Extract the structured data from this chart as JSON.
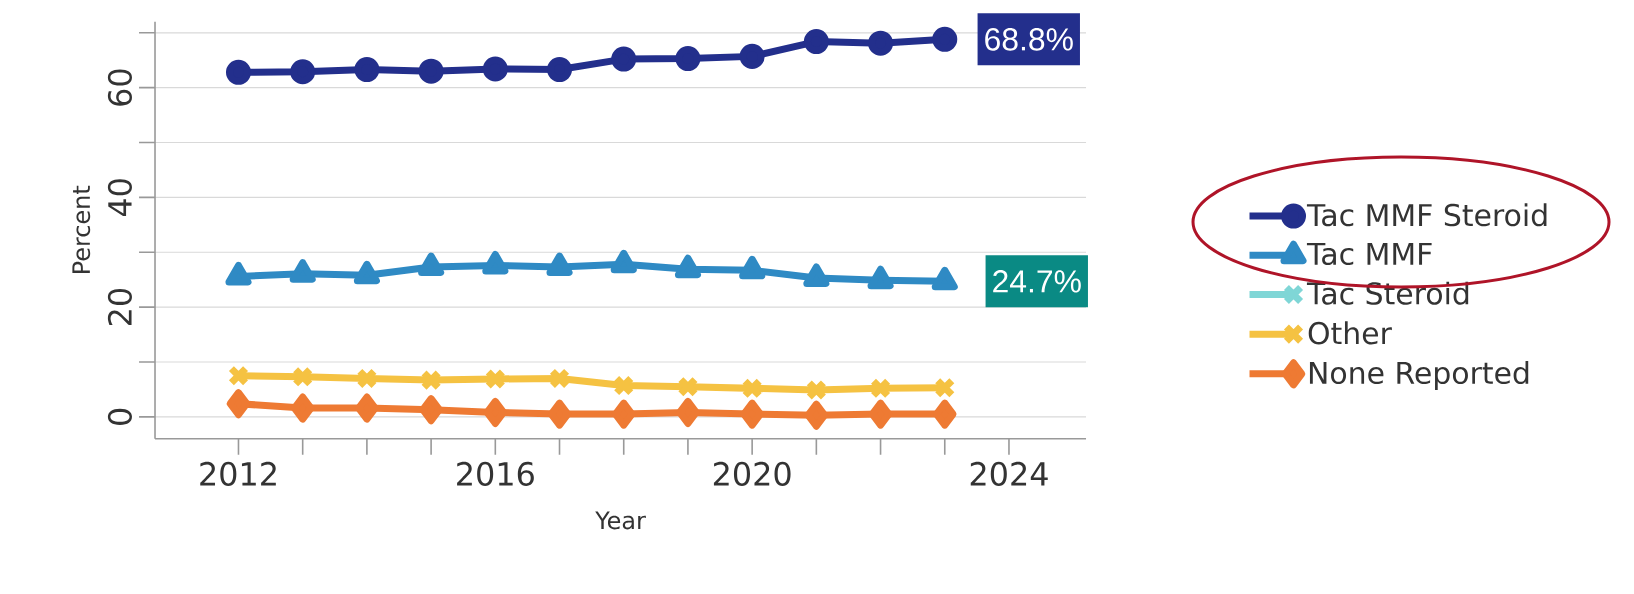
{
  "chart_data": {
    "type": "line",
    "xlabel": "Year",
    "ylabel": "Percent",
    "x": [
      2012,
      2013,
      2014,
      2015,
      2016,
      2017,
      2018,
      2019,
      2020,
      2021,
      2022,
      2023
    ],
    "series": [
      {
        "name": "Tac MMF Steroid",
        "color": "#232f8c",
        "marker": "circle",
        "values": [
          62.8,
          62.9,
          63.3,
          63.0,
          63.4,
          63.3,
          65.2,
          65.3,
          65.7,
          68.4,
          68.1,
          68.8
        ]
      },
      {
        "name": "Tac MMF",
        "color": "#2f8ac4",
        "marker": "triangle",
        "values": [
          25.6,
          26.1,
          25.8,
          27.3,
          27.6,
          27.3,
          27.8,
          26.9,
          26.7,
          25.3,
          24.9,
          24.7
        ]
      },
      {
        "name": "Tac Steroid",
        "color": "#7fd6d6",
        "marker": "cross",
        "values": [
          null,
          null,
          null,
          null,
          null,
          null,
          null,
          null,
          null,
          null,
          null,
          null
        ]
      },
      {
        "name": "Other",
        "color": "#f5c242",
        "marker": "cross",
        "values": [
          7.5,
          7.3,
          7.0,
          6.7,
          6.9,
          7.0,
          5.7,
          5.5,
          5.2,
          4.9,
          5.2,
          5.3
        ]
      },
      {
        "name": "None Reported",
        "color": "#ee7a33",
        "marker": "diamond",
        "values": [
          2.4,
          1.6,
          1.6,
          1.3,
          0.8,
          0.5,
          0.5,
          0.8,
          0.5,
          0.3,
          0.5,
          0.5
        ]
      }
    ],
    "xlim": [
      2010.7,
      2025.2
    ],
    "xticks": [
      2012,
      {
        "value": 2013,
        "label": null
      },
      {
        "value": 2014,
        "label": null
      },
      {
        "value": 2015,
        "label": null
      },
      2016,
      {
        "value": 2017,
        "label": null
      },
      {
        "value": 2018,
        "label": null
      },
      {
        "value": 2019,
        "label": null
      },
      2020,
      {
        "value": 2021,
        "label": null
      },
      {
        "value": 2022,
        "label": null
      },
      {
        "value": 2023,
        "label": null
      },
      2024
    ],
    "ylim": [
      -4,
      72
    ],
    "yticks": [
      0,
      {
        "value": 10,
        "label": null
      },
      20,
      {
        "value": 30,
        "label": null
      },
      40,
      {
        "value": 50,
        "label": null
      },
      60,
      {
        "value": 70,
        "label": null
      }
    ],
    "grid": "y",
    "legend": "right",
    "line_style": "solid",
    "annotations": [
      {
        "text": "68.8%",
        "x": 2023,
        "y": 68.8
      },
      {
        "text": "24.7%",
        "x": 2023,
        "y": 24.7
      }
    ]
  }
}
